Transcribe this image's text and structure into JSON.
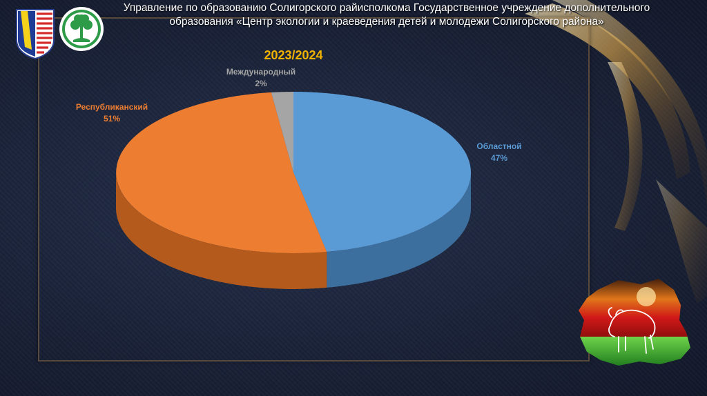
{
  "header": {
    "line1": "Управление по образованию Солигорского райисполкома  Государственное учреждение дополнительного",
    "line2": "образования «Центр экологии и краеведения детей и молодежи Солигорского района»"
  },
  "chart_data": {
    "type": "pie",
    "title": "2023/2024",
    "slices": [
      {
        "label": "Областной",
        "value": 47,
        "value_label": "47%",
        "color": "#5b9bd5",
        "side": "#3d6f9e",
        "label_color": "#5b9bd5"
      },
      {
        "label": "Республиканский",
        "value": 51,
        "value_label": "51%",
        "color": "#ed7d31",
        "side": "#b45a1c",
        "label_color": "#ed7d31"
      },
      {
        "label": "Международный",
        "value": 2,
        "value_label": "2%",
        "color": "#a5a5a5",
        "side": "#7a7a7a",
        "label_color": "#a5a5a5"
      }
    ],
    "title_color": "#f0b400"
  },
  "icons": {
    "shield": "coat-of-arms-icon",
    "tree": "tree-logo-icon",
    "map": "belarus-map-bison-icon"
  }
}
